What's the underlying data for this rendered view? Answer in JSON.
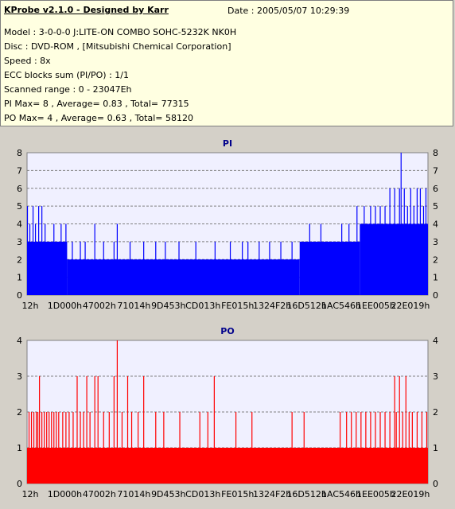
{
  "header": {
    "title": "KProbe v2.1.0 - Designed by Karr",
    "date": "Date : 2005/05/07 10:29:39",
    "lines": [
      "Model : 3-0-0-0 J:LITE-ON COMBO SOHC-5232K NK0H",
      "Disc : DVD-ROM ,  [Mitsubishi Chemical Corporation]",
      "Speed : 8x",
      "ECC blocks sum (PI/PO) : 1/1",
      "Scanned range : 0 - 23047Eh",
      "PI Max= 8 , Average= 0.83 , Total= 77315",
      "PO Max= 4 , Average= 0.63 , Total= 58120"
    ]
  },
  "chart_data": [
    {
      "type": "bar",
      "title": "PI",
      "color": "#0000ff",
      "ylim": [
        0,
        8
      ],
      "yticks": [
        0,
        1,
        2,
        3,
        4,
        5,
        6,
        7,
        8
      ],
      "xticks": [
        "12h",
        "1D000h",
        "47002h",
        "71014h",
        "9D453h",
        "CD013h",
        "FE015h",
        "1324F2h",
        "16D512h",
        "1AC546h",
        "1EE005h",
        "22E019h"
      ],
      "xlim_bins": [
        0,
        500
      ],
      "profile": [
        {
          "from": 0,
          "to": 50,
          "base": 3
        },
        {
          "from": 50,
          "to": 340,
          "base": 2
        },
        {
          "from": 340,
          "to": 415,
          "base": 3
        },
        {
          "from": 415,
          "to": 500,
          "base": 4
        }
      ],
      "spikes": [
        {
          "bin": 0,
          "value": 5
        },
        {
          "bin": 3,
          "value": 4
        },
        {
          "bin": 7,
          "value": 5
        },
        {
          "bin": 10,
          "value": 4
        },
        {
          "bin": 14,
          "value": 5
        },
        {
          "bin": 18,
          "value": 5
        },
        {
          "bin": 22,
          "value": 4
        },
        {
          "bin": 33,
          "value": 4
        },
        {
          "bin": 42,
          "value": 4
        },
        {
          "bin": 48,
          "value": 4
        },
        {
          "bin": 56,
          "value": 3
        },
        {
          "bin": 66,
          "value": 3
        },
        {
          "bin": 72,
          "value": 3
        },
        {
          "bin": 84,
          "value": 4
        },
        {
          "bin": 95,
          "value": 3
        },
        {
          "bin": 108,
          "value": 3
        },
        {
          "bin": 112,
          "value": 4
        },
        {
          "bin": 128,
          "value": 3
        },
        {
          "bin": 145,
          "value": 3
        },
        {
          "bin": 160,
          "value": 3
        },
        {
          "bin": 172,
          "value": 3
        },
        {
          "bin": 189,
          "value": 3
        },
        {
          "bin": 210,
          "value": 3
        },
        {
          "bin": 234,
          "value": 3
        },
        {
          "bin": 253,
          "value": 3
        },
        {
          "bin": 268,
          "value": 3
        },
        {
          "bin": 275,
          "value": 3
        },
        {
          "bin": 289,
          "value": 3
        },
        {
          "bin": 302,
          "value": 3
        },
        {
          "bin": 316,
          "value": 3
        },
        {
          "bin": 330,
          "value": 3
        },
        {
          "bin": 352,
          "value": 4
        },
        {
          "bin": 366,
          "value": 4
        },
        {
          "bin": 374,
          "value": 3
        },
        {
          "bin": 392,
          "value": 4
        },
        {
          "bin": 401,
          "value": 4
        },
        {
          "bin": 411,
          "value": 5
        },
        {
          "bin": 420,
          "value": 5
        },
        {
          "bin": 428,
          "value": 5
        },
        {
          "bin": 434,
          "value": 5
        },
        {
          "bin": 440,
          "value": 5
        },
        {
          "bin": 446,
          "value": 5
        },
        {
          "bin": 452,
          "value": 6
        },
        {
          "bin": 458,
          "value": 6
        },
        {
          "bin": 464,
          "value": 6
        },
        {
          "bin": 466,
          "value": 8
        },
        {
          "bin": 470,
          "value": 6
        },
        {
          "bin": 474,
          "value": 5
        },
        {
          "bin": 478,
          "value": 6
        },
        {
          "bin": 482,
          "value": 5
        },
        {
          "bin": 486,
          "value": 6
        },
        {
          "bin": 490,
          "value": 6
        },
        {
          "bin": 494,
          "value": 5
        },
        {
          "bin": 497,
          "value": 6
        }
      ]
    },
    {
      "type": "bar",
      "title": "PO",
      "color": "#ff0000",
      "ylim": [
        0,
        4
      ],
      "yticks": [
        0,
        1,
        2,
        3,
        4
      ],
      "xticks": [
        "12h",
        "1D000h",
        "47002h",
        "71014h",
        "9D453h",
        "CD013h",
        "FE015h",
        "1324F2h",
        "16D512h",
        "1AC546h",
        "1EE005h",
        "22E019h"
      ],
      "xlim_bins": [
        0,
        500
      ],
      "profile": [
        {
          "from": 0,
          "to": 500,
          "base": 1
        }
      ],
      "spikes": [
        {
          "bin": 2,
          "value": 2
        },
        {
          "bin": 5,
          "value": 2
        },
        {
          "bin": 8,
          "value": 2
        },
        {
          "bin": 11,
          "value": 2
        },
        {
          "bin": 13,
          "value": 2
        },
        {
          "bin": 15,
          "value": 3
        },
        {
          "bin": 18,
          "value": 2
        },
        {
          "bin": 21,
          "value": 2
        },
        {
          "bin": 24,
          "value": 2
        },
        {
          "bin": 27,
          "value": 2
        },
        {
          "bin": 30,
          "value": 2
        },
        {
          "bin": 33,
          "value": 2
        },
        {
          "bin": 36,
          "value": 2
        },
        {
          "bin": 39,
          "value": 2
        },
        {
          "bin": 44,
          "value": 2
        },
        {
          "bin": 48,
          "value": 2
        },
        {
          "bin": 52,
          "value": 2
        },
        {
          "bin": 57,
          "value": 2
        },
        {
          "bin": 62,
          "value": 3
        },
        {
          "bin": 66,
          "value": 2
        },
        {
          "bin": 70,
          "value": 2
        },
        {
          "bin": 74,
          "value": 3
        },
        {
          "bin": 78,
          "value": 2
        },
        {
          "bin": 84,
          "value": 3
        },
        {
          "bin": 88,
          "value": 3
        },
        {
          "bin": 95,
          "value": 2
        },
        {
          "bin": 102,
          "value": 2
        },
        {
          "bin": 108,
          "value": 3
        },
        {
          "bin": 112,
          "value": 4
        },
        {
          "bin": 118,
          "value": 2
        },
        {
          "bin": 125,
          "value": 3
        },
        {
          "bin": 130,
          "value": 2
        },
        {
          "bin": 138,
          "value": 2
        },
        {
          "bin": 145,
          "value": 3
        },
        {
          "bin": 160,
          "value": 2
        },
        {
          "bin": 170,
          "value": 2
        },
        {
          "bin": 190,
          "value": 2
        },
        {
          "bin": 215,
          "value": 2
        },
        {
          "bin": 225,
          "value": 2
        },
        {
          "bin": 233,
          "value": 3
        },
        {
          "bin": 260,
          "value": 2
        },
        {
          "bin": 280,
          "value": 2
        },
        {
          "bin": 330,
          "value": 2
        },
        {
          "bin": 345,
          "value": 2
        },
        {
          "bin": 390,
          "value": 2
        },
        {
          "bin": 398,
          "value": 2
        },
        {
          "bin": 404,
          "value": 2
        },
        {
          "bin": 410,
          "value": 2
        },
        {
          "bin": 416,
          "value": 2
        },
        {
          "bin": 422,
          "value": 2
        },
        {
          "bin": 428,
          "value": 2
        },
        {
          "bin": 434,
          "value": 2
        },
        {
          "bin": 440,
          "value": 2
        },
        {
          "bin": 446,
          "value": 2
        },
        {
          "bin": 452,
          "value": 2
        },
        {
          "bin": 458,
          "value": 3
        },
        {
          "bin": 460,
          "value": 2
        },
        {
          "bin": 464,
          "value": 3
        },
        {
          "bin": 468,
          "value": 2
        },
        {
          "bin": 472,
          "value": 3
        },
        {
          "bin": 476,
          "value": 2
        },
        {
          "bin": 480,
          "value": 2
        },
        {
          "bin": 486,
          "value": 2
        },
        {
          "bin": 492,
          "value": 2
        },
        {
          "bin": 498,
          "value": 2
        }
      ]
    }
  ]
}
